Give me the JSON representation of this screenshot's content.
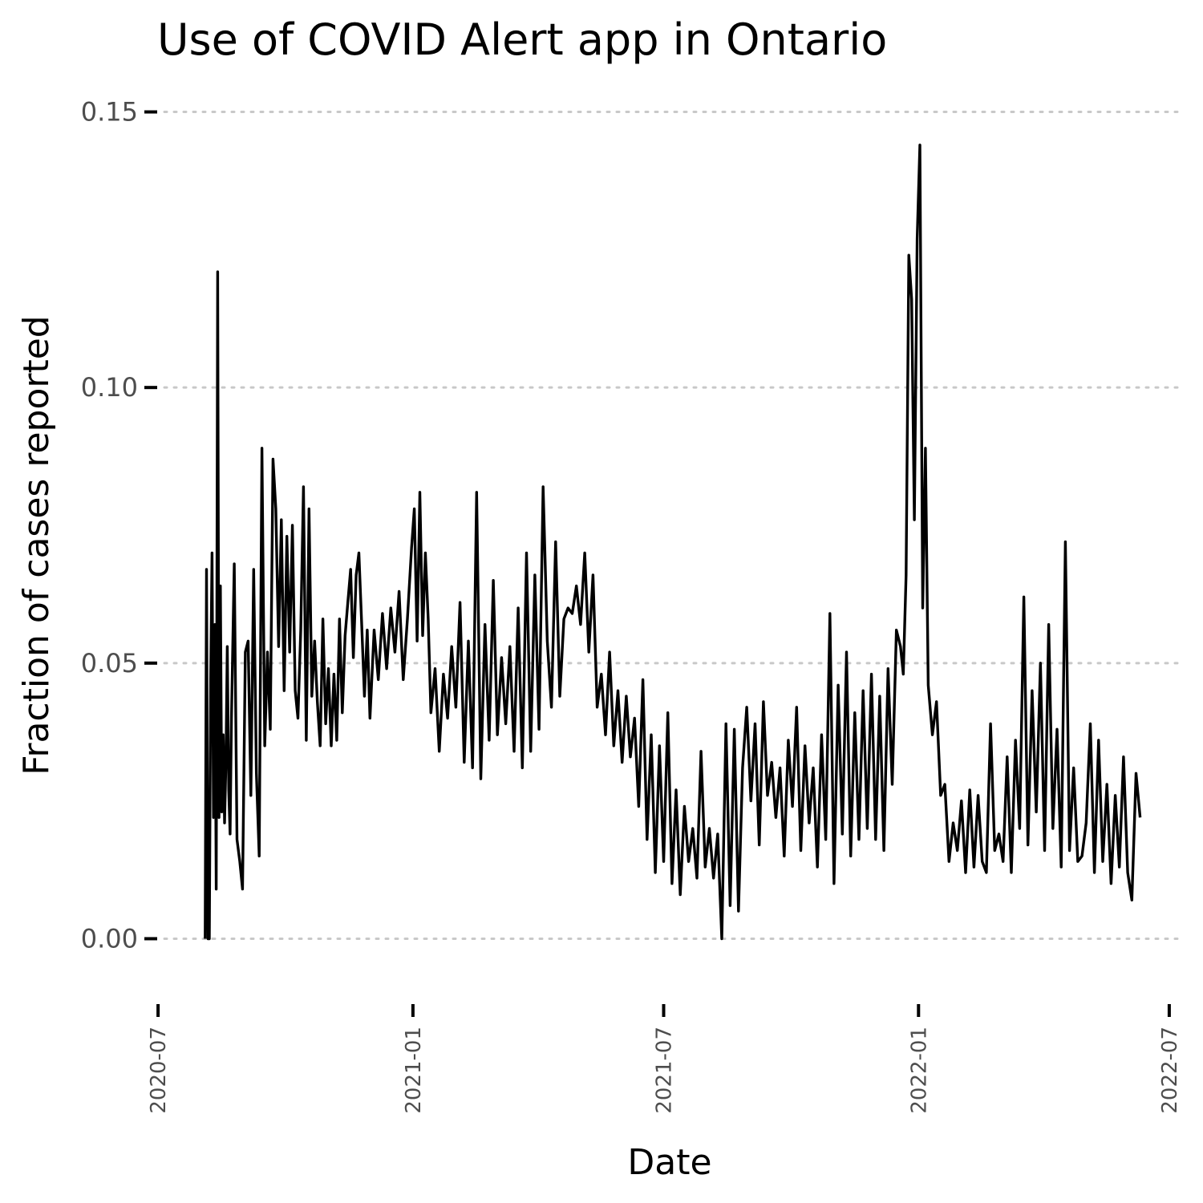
{
  "chart_data": {
    "type": "line",
    "title": "Use of COVID Alert app in Ontario",
    "xlabel": "Date",
    "ylabel": "Fraction of cases reported",
    "y_ticks": [
      "0.00",
      "0.05",
      "0.10",
      "0.15"
    ],
    "y_tick_values": [
      0,
      0.05,
      0.1,
      0.15
    ],
    "x_ticks": [
      "2020-07",
      "2021-01",
      "2021-07",
      "2022-01",
      "2022-07"
    ],
    "x_tick_values": [
      "2020-07-01",
      "2021-01-01",
      "2021-07-01",
      "2022-01-01",
      "2022-07-01"
    ],
    "xlim": [
      "2020-06-24",
      "2022-07-08"
    ],
    "ylim": [
      -0.0075,
      0.1575
    ],
    "grid": "horizontal dotted",
    "legend": "none",
    "series": [
      {
        "color": "#000000",
        "x": [
          "2020-08-04",
          "2020-08-05",
          "2020-08-06",
          "2020-08-07",
          "2020-08-08",
          "2020-08-09",
          "2020-08-10",
          "2020-08-11",
          "2020-08-12",
          "2020-08-13",
          "2020-08-14",
          "2020-08-15",
          "2020-08-16",
          "2020-08-17",
          "2020-08-18",
          "2020-08-19",
          "2020-08-20",
          "2020-08-21",
          "2020-08-22",
          "2020-08-23",
          "2020-08-25",
          "2020-08-27",
          "2020-08-29",
          "2020-08-31",
          "2020-09-02",
          "2020-09-04",
          "2020-09-06",
          "2020-09-08",
          "2020-09-10",
          "2020-09-12",
          "2020-09-14",
          "2020-09-16",
          "2020-09-18",
          "2020-09-20",
          "2020-09-22",
          "2020-09-24",
          "2020-09-26",
          "2020-09-28",
          "2020-09-30",
          "2020-10-02",
          "2020-10-04",
          "2020-10-06",
          "2020-10-08",
          "2020-10-10",
          "2020-10-12",
          "2020-10-14",
          "2020-10-16",
          "2020-10-18",
          "2020-10-20",
          "2020-10-22",
          "2020-10-24",
          "2020-10-26",
          "2020-10-28",
          "2020-10-30",
          "2020-11-01",
          "2020-11-03",
          "2020-11-05",
          "2020-11-07",
          "2020-11-09",
          "2020-11-11",
          "2020-11-13",
          "2020-11-15",
          "2020-11-17",
          "2020-11-19",
          "2020-11-21",
          "2020-11-23",
          "2020-11-25",
          "2020-11-27",
          "2020-11-29",
          "2020-12-01",
          "2020-12-04",
          "2020-12-07",
          "2020-12-10",
          "2020-12-13",
          "2020-12-16",
          "2020-12-19",
          "2020-12-22",
          "2020-12-25",
          "2020-12-28",
          "2020-12-31",
          "2021-01-02",
          "2021-01-04",
          "2021-01-06",
          "2021-01-08",
          "2021-01-10",
          "2021-01-12",
          "2021-01-14",
          "2021-01-17",
          "2021-01-20",
          "2021-01-23",
          "2021-01-26",
          "2021-01-29",
          "2021-02-01",
          "2021-02-04",
          "2021-02-07",
          "2021-02-10",
          "2021-02-13",
          "2021-02-16",
          "2021-02-19",
          "2021-02-22",
          "2021-02-25",
          "2021-02-28",
          "2021-03-03",
          "2021-03-06",
          "2021-03-09",
          "2021-03-12",
          "2021-03-15",
          "2021-03-18",
          "2021-03-21",
          "2021-03-24",
          "2021-03-27",
          "2021-03-30",
          "2021-04-02",
          "2021-04-05",
          "2021-04-08",
          "2021-04-11",
          "2021-04-14",
          "2021-04-17",
          "2021-04-20",
          "2021-04-23",
          "2021-04-26",
          "2021-04-29",
          "2021-05-02",
          "2021-05-05",
          "2021-05-08",
          "2021-05-11",
          "2021-05-14",
          "2021-05-17",
          "2021-05-20",
          "2021-05-23",
          "2021-05-26",
          "2021-05-29",
          "2021-06-01",
          "2021-06-04",
          "2021-06-07",
          "2021-06-10",
          "2021-06-13",
          "2021-06-16",
          "2021-06-19",
          "2021-06-22",
          "2021-06-25",
          "2021-06-28",
          "2021-07-01",
          "2021-07-04",
          "2021-07-07",
          "2021-07-10",
          "2021-07-13",
          "2021-07-16",
          "2021-07-19",
          "2021-07-22",
          "2021-07-25",
          "2021-07-28",
          "2021-07-31",
          "2021-08-03",
          "2021-08-06",
          "2021-08-09",
          "2021-08-12",
          "2021-08-15",
          "2021-08-18",
          "2021-08-21",
          "2021-08-24",
          "2021-08-27",
          "2021-08-30",
          "2021-09-02",
          "2021-09-05",
          "2021-09-08",
          "2021-09-11",
          "2021-09-14",
          "2021-09-17",
          "2021-09-20",
          "2021-09-23",
          "2021-09-26",
          "2021-09-29",
          "2021-10-02",
          "2021-10-05",
          "2021-10-08",
          "2021-10-11",
          "2021-10-14",
          "2021-10-17",
          "2021-10-20",
          "2021-10-23",
          "2021-10-26",
          "2021-10-29",
          "2021-11-01",
          "2021-11-04",
          "2021-11-07",
          "2021-11-10",
          "2021-11-13",
          "2021-11-16",
          "2021-11-19",
          "2021-11-22",
          "2021-11-25",
          "2021-11-28",
          "2021-12-01",
          "2021-12-04",
          "2021-12-07",
          "2021-12-10",
          "2021-12-13",
          "2021-12-16",
          "2021-12-19",
          "2021-12-21",
          "2021-12-23",
          "2021-12-25",
          "2021-12-27",
          "2021-12-29",
          "2021-12-31",
          "2022-01-02",
          "2022-01-04",
          "2022-01-06",
          "2022-01-08",
          "2022-01-11",
          "2022-01-14",
          "2022-01-17",
          "2022-01-20",
          "2022-01-23",
          "2022-01-26",
          "2022-01-29",
          "2022-02-01",
          "2022-02-04",
          "2022-02-07",
          "2022-02-10",
          "2022-02-13",
          "2022-02-16",
          "2022-02-19",
          "2022-02-22",
          "2022-02-25",
          "2022-02-28",
          "2022-03-03",
          "2022-03-06",
          "2022-03-09",
          "2022-03-12",
          "2022-03-15",
          "2022-03-18",
          "2022-03-21",
          "2022-03-24",
          "2022-03-27",
          "2022-03-30",
          "2022-04-02",
          "2022-04-05",
          "2022-04-08",
          "2022-04-11",
          "2022-04-14",
          "2022-04-17",
          "2022-04-20",
          "2022-04-23",
          "2022-04-26",
          "2022-04-29",
          "2022-05-02",
          "2022-05-05",
          "2022-05-08",
          "2022-05-11",
          "2022-05-14",
          "2022-05-17",
          "2022-05-20",
          "2022-05-23",
          "2022-05-26",
          "2022-05-29",
          "2022-06-01",
          "2022-06-04",
          "2022-06-07",
          "2022-06-10"
        ],
        "values": [
          0.0,
          0.067,
          0.0,
          0.0,
          0.047,
          0.07,
          0.022,
          0.057,
          0.009,
          0.121,
          0.022,
          0.064,
          0.023,
          0.037,
          0.021,
          0.032,
          0.053,
          0.027,
          0.019,
          0.04,
          0.068,
          0.018,
          0.014,
          0.009,
          0.052,
          0.054,
          0.026,
          0.067,
          0.03,
          0.015,
          0.089,
          0.035,
          0.052,
          0.038,
          0.087,
          0.078,
          0.053,
          0.076,
          0.045,
          0.073,
          0.052,
          0.075,
          0.045,
          0.04,
          0.056,
          0.082,
          0.036,
          0.078,
          0.044,
          0.054,
          0.043,
          0.035,
          0.058,
          0.039,
          0.049,
          0.035,
          0.048,
          0.036,
          0.058,
          0.041,
          0.055,
          0.061,
          0.067,
          0.051,
          0.066,
          0.07,
          0.057,
          0.044,
          0.056,
          0.04,
          0.056,
          0.047,
          0.059,
          0.049,
          0.06,
          0.052,
          0.063,
          0.047,
          0.058,
          0.071,
          0.078,
          0.054,
          0.081,
          0.055,
          0.07,
          0.058,
          0.041,
          0.049,
          0.034,
          0.048,
          0.04,
          0.053,
          0.042,
          0.061,
          0.032,
          0.054,
          0.031,
          0.081,
          0.029,
          0.057,
          0.036,
          0.065,
          0.037,
          0.051,
          0.039,
          0.053,
          0.034,
          0.06,
          0.031,
          0.07,
          0.034,
          0.066,
          0.038,
          0.082,
          0.054,
          0.042,
          0.072,
          0.044,
          0.058,
          0.06,
          0.059,
          0.064,
          0.057,
          0.07,
          0.052,
          0.066,
          0.042,
          0.048,
          0.037,
          0.052,
          0.035,
          0.045,
          0.032,
          0.044,
          0.033,
          0.04,
          0.024,
          0.047,
          0.018,
          0.037,
          0.012,
          0.035,
          0.014,
          0.041,
          0.01,
          0.027,
          0.008,
          0.024,
          0.014,
          0.02,
          0.011,
          0.034,
          0.013,
          0.02,
          0.011,
          0.019,
          0.0,
          0.039,
          0.006,
          0.038,
          0.005,
          0.031,
          0.042,
          0.025,
          0.039,
          0.017,
          0.043,
          0.026,
          0.032,
          0.022,
          0.031,
          0.015,
          0.036,
          0.024,
          0.042,
          0.016,
          0.035,
          0.021,
          0.031,
          0.013,
          0.037,
          0.018,
          0.059,
          0.01,
          0.046,
          0.019,
          0.052,
          0.015,
          0.041,
          0.018,
          0.045,
          0.02,
          0.048,
          0.018,
          0.044,
          0.016,
          0.049,
          0.028,
          0.056,
          0.053,
          0.048,
          0.066,
          0.124,
          0.116,
          0.076,
          0.127,
          0.144,
          0.06,
          0.089,
          0.046,
          0.037,
          0.043,
          0.026,
          0.028,
          0.014,
          0.021,
          0.016,
          0.025,
          0.012,
          0.027,
          0.013,
          0.026,
          0.014,
          0.012,
          0.039,
          0.016,
          0.019,
          0.014,
          0.033,
          0.012,
          0.036,
          0.02,
          0.062,
          0.017,
          0.045,
          0.023,
          0.05,
          0.016,
          0.057,
          0.02,
          0.038,
          0.013,
          0.072,
          0.016,
          0.031,
          0.014,
          0.015,
          0.021,
          0.039,
          0.012,
          0.036,
          0.014,
          0.028,
          0.01,
          0.026,
          0.013,
          0.033,
          0.012,
          0.007,
          0.03,
          0.022
        ]
      }
    ]
  }
}
